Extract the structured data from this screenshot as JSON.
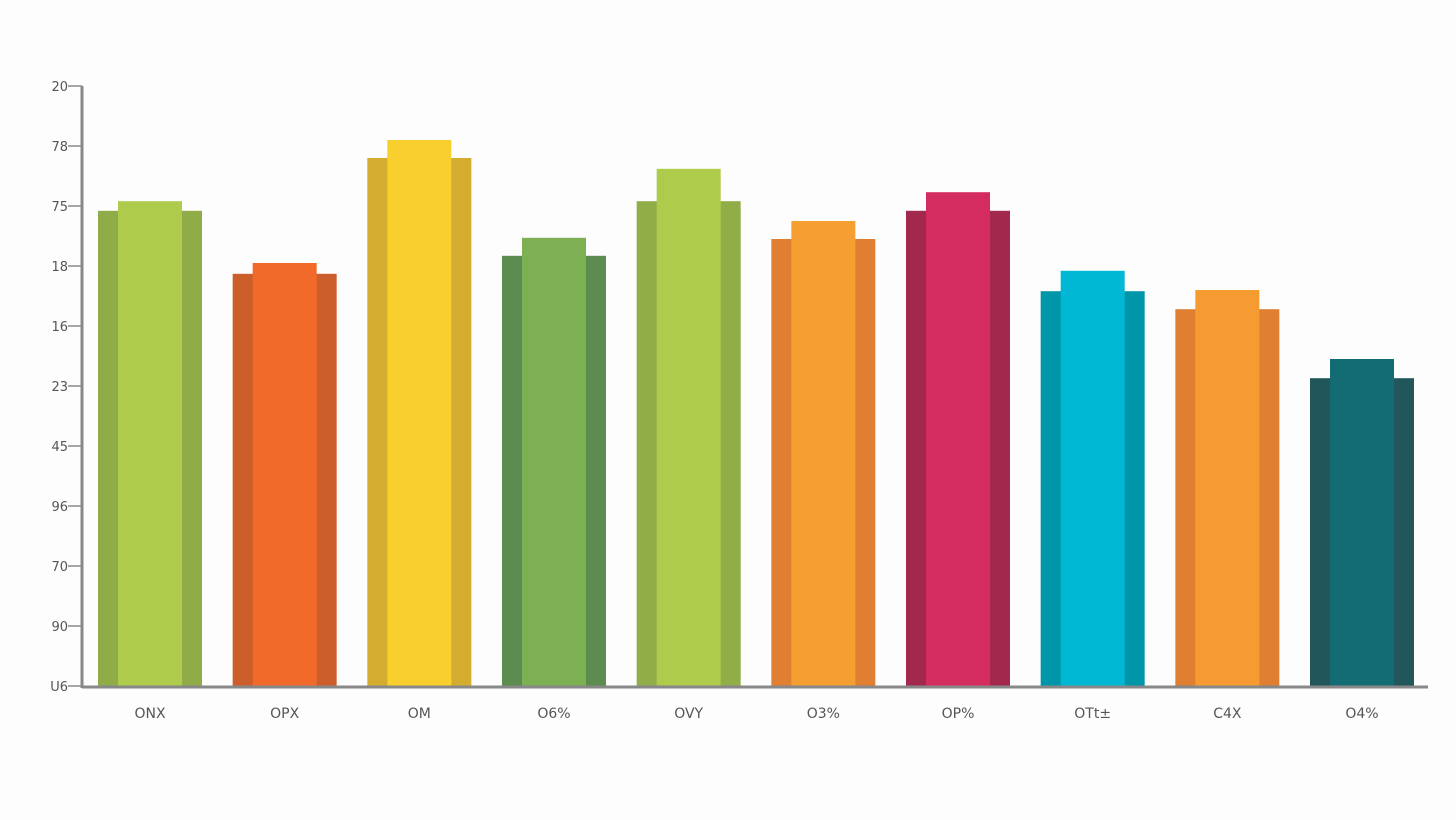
{
  "chart_data": {
    "type": "bar",
    "title": "",
    "xlabel": "",
    "ylabel": "",
    "y_tick_labels": [
      "U6",
      "90",
      "70",
      "96",
      "45",
      "23",
      "16",
      "18",
      "75",
      "78",
      "20"
    ],
    "ylim": [
      0,
      10
    ],
    "grid": false,
    "legend": "none",
    "categories": [
      "ONX",
      "OPX",
      "OM",
      "O6%",
      "OVY",
      "O3%",
      "OP%",
      "OTt±",
      "C4X",
      "O4%"
    ],
    "series": [
      {
        "values": [
          8.08,
          7.05,
          9.1,
          7.47,
          8.62,
          7.75,
          8.23,
          6.92,
          6.6,
          5.45
        ]
      },
      {
        "values": [
          7.92,
          6.87,
          8.8,
          7.17,
          8.08,
          7.45,
          7.92,
          6.58,
          6.28,
          5.13
        ]
      }
    ],
    "colors_front": [
      "#aecb4c",
      "#f26a2a",
      "#f9cf2e",
      "#7db052",
      "#aecb4c",
      "#f59e32",
      "#d42c5e",
      "#00b8d4",
      "#f59b32",
      "#136c74"
    ],
    "colors_back": [
      "#8fac48",
      "#cc5e2c",
      "#d4ac30",
      "#5d8c50",
      "#90ad48",
      "#e07f32",
      "#a3284e",
      "#0096aa",
      "#e07e32",
      "#21565a"
    ],
    "axis_color": "#888888"
  }
}
